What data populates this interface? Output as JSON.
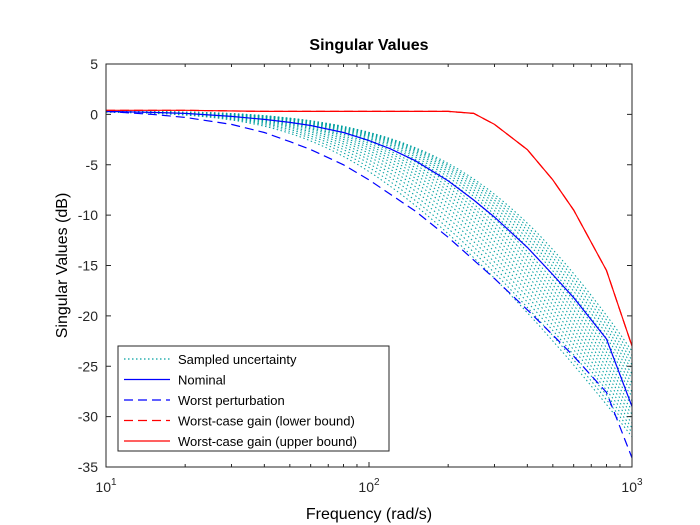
{
  "chart_data": {
    "type": "line",
    "title": "Singular Values",
    "xlabel": "Frequency (rad/s)",
    "ylabel": "Singular Values (dB)",
    "xscale": "log",
    "xlim": [
      10,
      1000
    ],
    "ylim": [
      -35,
      5
    ],
    "x_ticks": [
      10,
      100,
      1000
    ],
    "x_tick_labels": [
      {
        "base": "10",
        "exp": "1"
      },
      {
        "base": "10",
        "exp": "2"
      },
      {
        "base": "10",
        "exp": "3"
      }
    ],
    "y_ticks": [
      5,
      0,
      -5,
      -10,
      -15,
      -20,
      -25,
      -30,
      -35
    ],
    "y_tick_labels": [
      "5",
      "0",
      "-5",
      "-10",
      "-15",
      "-20",
      "-25",
      "-30",
      "-35"
    ],
    "grid": false,
    "legend_position": "bottom-left",
    "colors": {
      "nominal": "#0000ff",
      "worst_perturbation": "#0000ff",
      "upper_bound": "#ff0000",
      "lower_bound": "#ff0000",
      "samples": "#00a0a0"
    },
    "legend": [
      {
        "label": "Sampled uncertainty",
        "style": "dotted",
        "color": "#00a0a0"
      },
      {
        "label": "Nominal",
        "style": "solid",
        "color": "#0000ff"
      },
      {
        "label": "Worst perturbation",
        "style": "dashed",
        "color": "#0000ff"
      },
      {
        "label": "Worst-case gain (lower bound)",
        "style": "dashed",
        "color": "#ff0000"
      },
      {
        "label": "Worst-case gain (upper bound)",
        "style": "solid",
        "color": "#ff0000"
      }
    ],
    "series": [
      {
        "name": "Nominal",
        "style": "solid",
        "color": "#0000ff",
        "x": [
          10,
          15,
          20,
          30,
          40,
          50,
          60,
          80,
          100,
          120,
          150,
          200,
          250,
          300,
          400,
          500,
          600,
          800,
          1000
        ],
        "y": [
          0.3,
          0.2,
          0.1,
          -0.2,
          -0.5,
          -0.8,
          -1.1,
          -1.8,
          -2.6,
          -3.4,
          -4.6,
          -6.6,
          -8.5,
          -10.2,
          -13.2,
          -15.9,
          -18.2,
          -22.3,
          -29.0
        ]
      },
      {
        "name": "Worst perturbation",
        "style": "dashed",
        "color": "#0000ff",
        "x": [
          10,
          15,
          20,
          30,
          40,
          50,
          60,
          80,
          100,
          150,
          200,
          300,
          400,
          500,
          600,
          800,
          1000
        ],
        "y": [
          0.3,
          0.0,
          -0.3,
          -1.0,
          -1.8,
          -2.7,
          -3.5,
          -5.0,
          -6.5,
          -9.6,
          -12.2,
          -16.3,
          -19.4,
          -21.9,
          -24.0,
          -27.6,
          -34.1
        ]
      },
      {
        "name": "Worst-case gain (lower bound)",
        "style": "dashed",
        "color": "#ff0000",
        "x": [
          10,
          20,
          40,
          60,
          80,
          100,
          150,
          200,
          250,
          300,
          400,
          500,
          600,
          800,
          1000
        ],
        "y": [
          0.4,
          0.4,
          0.3,
          0.3,
          0.3,
          0.3,
          0.3,
          0.3,
          0.1,
          -1.0,
          -3.5,
          -6.5,
          -9.5,
          -15.5,
          -23.0
        ]
      },
      {
        "name": "Worst-case gain (upper bound)",
        "style": "solid",
        "color": "#ff0000",
        "x": [
          10,
          20,
          40,
          60,
          80,
          100,
          150,
          200,
          250,
          300,
          400,
          500,
          600,
          800,
          1000
        ],
        "y": [
          0.4,
          0.4,
          0.3,
          0.3,
          0.3,
          0.3,
          0.3,
          0.3,
          0.1,
          -1.0,
          -3.5,
          -6.5,
          -9.5,
          -15.5,
          -23.0
        ]
      }
    ],
    "sampled_uncertainty": {
      "style": "dotted",
      "color": "#00a0a0",
      "count": 20,
      "corner_frequency_range": [
        70,
        300
      ],
      "final_value_range": [
        -32,
        -23.5
      ]
    }
  }
}
